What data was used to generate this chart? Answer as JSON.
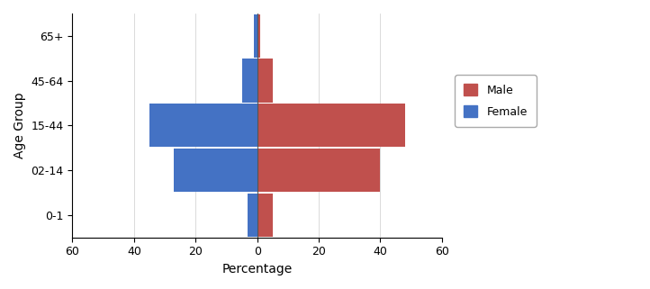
{
  "age_groups": [
    "0-1",
    "02-14",
    "15-44",
    "45-64",
    "65+"
  ],
  "female_values": [
    -3,
    -27,
    -35,
    -5,
    -1
  ],
  "male_values": [
    5,
    40,
    48,
    5,
    1
  ],
  "female_color": "#4472C4",
  "male_color": "#C0504D",
  "xlabel": "Percentage",
  "ylabel": "Age Group",
  "xlim": [
    -60,
    60
  ],
  "xticks": [
    -60,
    -40,
    -20,
    0,
    20,
    40,
    60
  ],
  "xtick_labels": [
    "60",
    "40",
    "20",
    "0",
    "20",
    "40",
    "60"
  ],
  "background_color": "#ffffff",
  "legend_male": "Male",
  "legend_female": "Female",
  "bar_height": 0.97,
  "figsize": [
    7.22,
    3.21
  ],
  "dpi": 100
}
